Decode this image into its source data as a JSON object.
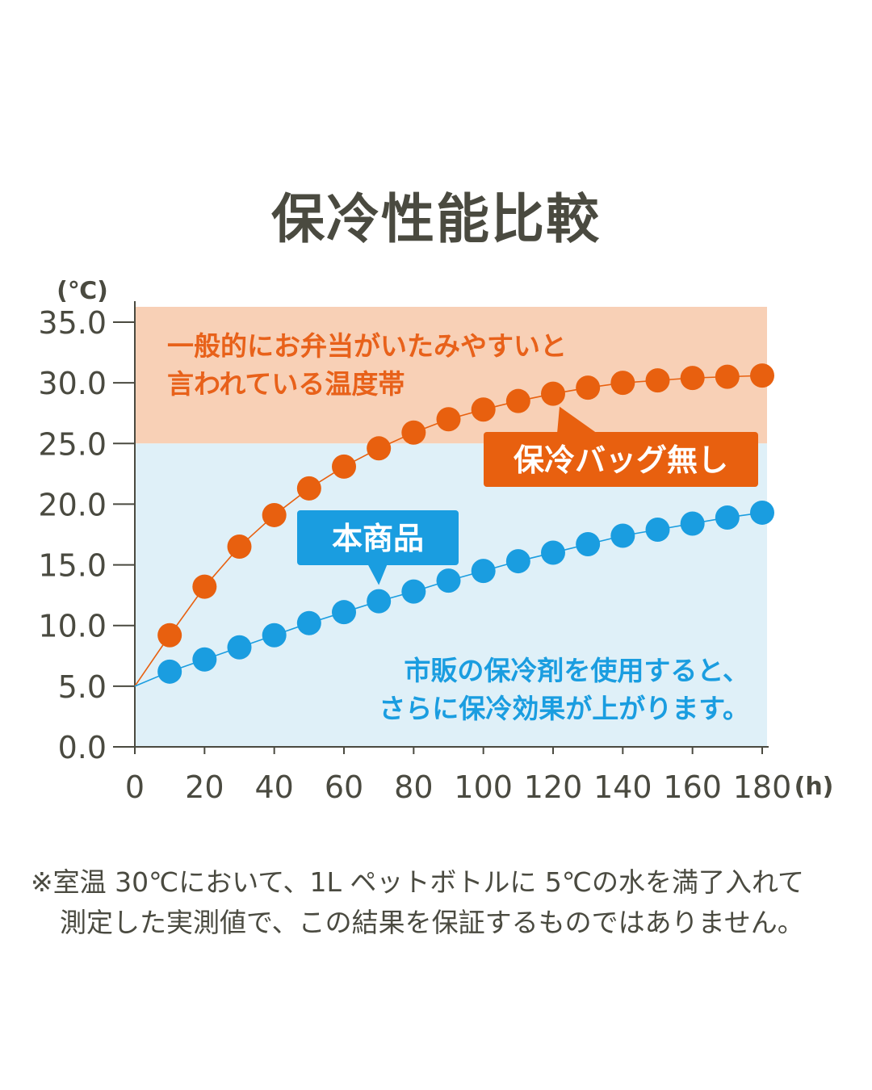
{
  "chart_data": {
    "type": "scatter",
    "title": "保冷性能比較",
    "y_unit": "(℃)",
    "x_unit": "(h)",
    "xlim": [
      0,
      180
    ],
    "ylim": [
      0,
      35
    ],
    "x_ticks": [
      "0",
      "20",
      "40",
      "60",
      "80",
      "100",
      "120",
      "140",
      "160",
      "180"
    ],
    "y_ticks": [
      "0.0",
      "5.0",
      "10.0",
      "15.0",
      "20.0",
      "25.0",
      "30.0",
      "35.0"
    ],
    "zones": [
      {
        "from": 25,
        "to": 36.5,
        "color": "#f8d0b6",
        "label_lines": [
          "一般的にお弁当がいたみやすいと",
          "言われている温度帯"
        ],
        "label_color": "#e8611a"
      },
      {
        "from": 0,
        "to": 25,
        "color": "#dff0f8"
      }
    ],
    "start_point": {
      "x": 0,
      "y": 5.0
    },
    "series": [
      {
        "name": "保冷バッグ無し",
        "color": "#e8600f",
        "x": [
          10,
          20,
          30,
          40,
          50,
          60,
          70,
          80,
          90,
          100,
          110,
          120,
          130,
          140,
          150,
          160,
          170,
          180
        ],
        "y": [
          9.2,
          13.2,
          16.5,
          19.1,
          21.3,
          23.1,
          24.6,
          25.9,
          27.0,
          27.8,
          28.5,
          29.1,
          29.6,
          30.0,
          30.2,
          30.4,
          30.5,
          30.6
        ]
      },
      {
        "name": "本商品",
        "color": "#1a9de0",
        "x": [
          10,
          20,
          30,
          40,
          50,
          60,
          70,
          80,
          90,
          100,
          110,
          120,
          130,
          140,
          150,
          160,
          170,
          180
        ],
        "y": [
          6.2,
          7.2,
          8.2,
          9.2,
          10.2,
          11.1,
          12.0,
          12.8,
          13.7,
          14.5,
          15.3,
          16.0,
          16.7,
          17.4,
          17.9,
          18.4,
          18.9,
          19.3
        ]
      }
    ],
    "annotation": {
      "lines": [
        "市販の保冷剤を使用すると、",
        "さらに保冷効果が上がります。"
      ],
      "color": "#1a9de0"
    }
  },
  "footnote": {
    "line1": "※室温 30℃において、1L ペットボトルに 5℃の水を満了入れて",
    "line2": "測定した実測値で、この結果を保証するものではありません。"
  }
}
